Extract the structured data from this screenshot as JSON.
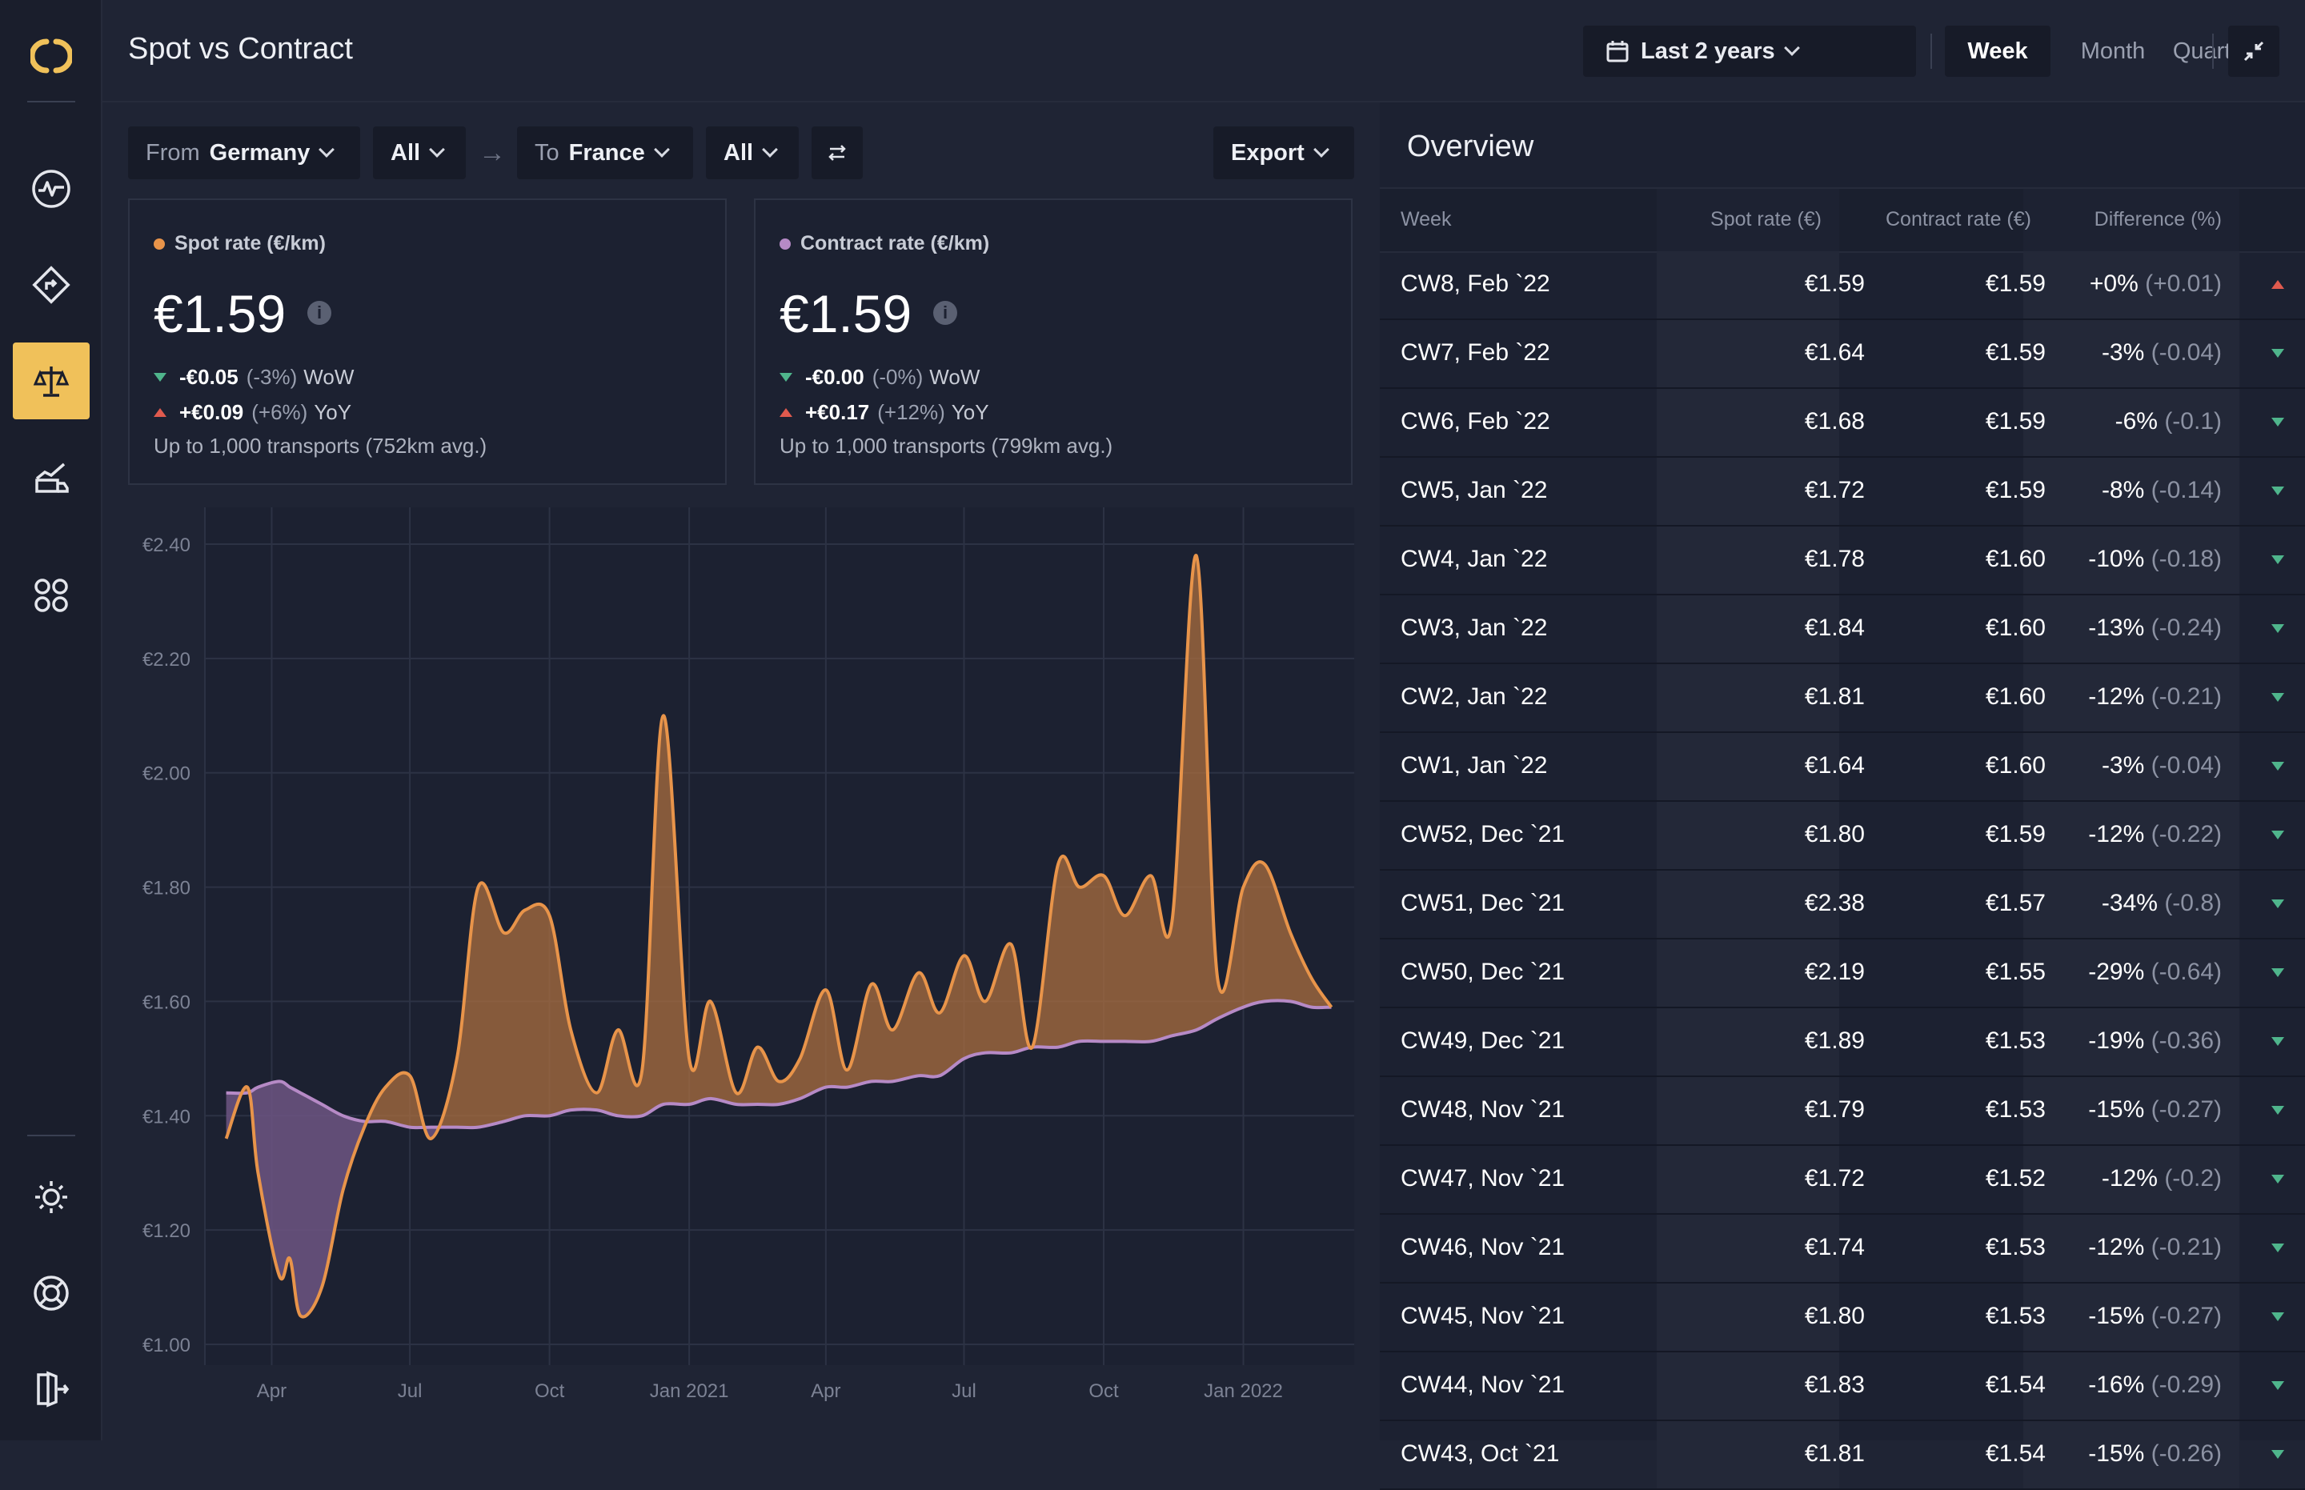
{
  "app": {
    "page_title": "Spot vs Contract",
    "logo_icon": "logo-brackets-icon",
    "accent_color": "#f0c15a"
  },
  "sidebar": {
    "items": [
      {
        "name": "activity-icon",
        "active": false
      },
      {
        "name": "routes-icon",
        "active": false
      },
      {
        "name": "scale-icon",
        "active": true
      },
      {
        "name": "truck-chart-icon",
        "active": false
      },
      {
        "name": "apps-grid-icon",
        "active": false
      }
    ],
    "bottom": [
      {
        "name": "theme-sun-icon"
      },
      {
        "name": "support-lifebuoy-icon"
      },
      {
        "name": "logout-icon"
      }
    ]
  },
  "header": {
    "date_range": "Last 2 years",
    "periods": [
      {
        "label": "Week",
        "active": true
      },
      {
        "label": "Month",
        "active": false
      },
      {
        "label": "Quarter",
        "active": false
      }
    ]
  },
  "filters": {
    "from_label": "From",
    "from_value": "Germany",
    "from_sub": "All",
    "to_label": "To",
    "to_value": "France",
    "to_sub": "All",
    "export_label": "Export"
  },
  "kpis": [
    {
      "title": "Spot rate (€/km)",
      "color": "#e8944a",
      "value": "€1.59",
      "wow_value": "-€0.05",
      "wow_pct": "(-3%)",
      "wow_label": "WoW",
      "wow_dir": "down",
      "yoy_value": "+€0.09",
      "yoy_pct": "(+6%)",
      "yoy_label": "YoY",
      "yoy_dir": "up",
      "footnote": "Up to 1,000 transports (752km avg.)"
    },
    {
      "title": "Contract rate (€/km)",
      "color": "#b68ac6",
      "value": "€1.59",
      "wow_value": "-€0.00",
      "wow_pct": "(-0%)",
      "wow_label": "WoW",
      "wow_dir": "down",
      "yoy_value": "+€0.17",
      "yoy_pct": "(+12%)",
      "yoy_label": "YoY",
      "yoy_dir": "up",
      "footnote": "Up to 1,000 transports (799km avg.)"
    }
  ],
  "chart_data": {
    "type": "area",
    "x": [
      "2020-03-02",
      "2020-03-16",
      "2020-03-23",
      "2020-04-06",
      "2020-04-13",
      "2020-04-20",
      "2020-05-04",
      "2020-05-18",
      "2020-06-01",
      "2020-06-15",
      "2020-07-01",
      "2020-07-15",
      "2020-08-01",
      "2020-08-15",
      "2020-09-01",
      "2020-09-15",
      "2020-10-01",
      "2020-10-15",
      "2020-11-01",
      "2020-11-15",
      "2020-12-01",
      "2020-12-15",
      "2021-01-01",
      "2021-01-15",
      "2021-02-01",
      "2021-02-15",
      "2021-03-01",
      "2021-03-15",
      "2021-04-01",
      "2021-04-15",
      "2021-05-01",
      "2021-05-15",
      "2021-06-01",
      "2021-06-15",
      "2021-07-01",
      "2021-07-15",
      "2021-08-01",
      "2021-08-15",
      "2021-09-01",
      "2021-09-15",
      "2021-10-01",
      "2021-10-15",
      "2021-11-01",
      "2021-11-15",
      "2021-12-01",
      "2021-12-15",
      "2022-01-01",
      "2022-01-15",
      "2022-02-01",
      "2022-02-15",
      "2022-02-28"
    ],
    "series": [
      {
        "name": "Spot rate (€/km)",
        "color": "#e8944a",
        "values": [
          1.36,
          1.45,
          1.3,
          1.12,
          1.15,
          1.05,
          1.1,
          1.27,
          1.38,
          1.45,
          1.47,
          1.36,
          1.5,
          1.8,
          1.72,
          1.76,
          1.75,
          1.55,
          1.44,
          1.55,
          1.48,
          2.1,
          1.5,
          1.6,
          1.44,
          1.52,
          1.46,
          1.5,
          1.62,
          1.48,
          1.63,
          1.55,
          1.65,
          1.58,
          1.68,
          1.6,
          1.7,
          1.52,
          1.84,
          1.8,
          1.82,
          1.75,
          1.82,
          1.74,
          2.38,
          1.64,
          1.8,
          1.84,
          1.72,
          1.64,
          1.59
        ]
      },
      {
        "name": "Contract rate (€/km)",
        "color": "#b68ac6",
        "values": [
          1.44,
          1.44,
          1.45,
          1.46,
          1.45,
          1.44,
          1.42,
          1.4,
          1.39,
          1.39,
          1.38,
          1.38,
          1.38,
          1.38,
          1.39,
          1.4,
          1.4,
          1.41,
          1.41,
          1.4,
          1.4,
          1.42,
          1.42,
          1.43,
          1.42,
          1.42,
          1.42,
          1.43,
          1.45,
          1.45,
          1.46,
          1.46,
          1.47,
          1.47,
          1.5,
          1.51,
          1.51,
          1.52,
          1.52,
          1.53,
          1.53,
          1.53,
          1.53,
          1.54,
          1.55,
          1.57,
          1.59,
          1.6,
          1.6,
          1.59,
          1.59
        ]
      }
    ],
    "y_ticks": [
      "€1.00",
      "€1.20",
      "€1.40",
      "€1.60",
      "€1.80",
      "€2.00",
      "€2.20",
      "€2.40"
    ],
    "x_ticks": [
      "Apr",
      "Jul",
      "Oct",
      "Jan 2021",
      "Apr",
      "Jul",
      "Oct",
      "Jan 2022"
    ],
    "ylim": [
      1.0,
      2.4
    ],
    "grid": true
  },
  "overview": {
    "title": "Overview",
    "columns": [
      "Week",
      "Spot rate (€)",
      "Contract rate (€)",
      "Difference (%)"
    ],
    "rows": [
      {
        "week": "CW8, Feb `22",
        "spot": "€1.59",
        "contract": "€1.59",
        "diff": "+0%",
        "diff_abs": "(+0.01)",
        "dir": "up"
      },
      {
        "week": "CW7, Feb `22",
        "spot": "€1.64",
        "contract": "€1.59",
        "diff": "-3%",
        "diff_abs": "(-0.04)",
        "dir": "down"
      },
      {
        "week": "CW6, Feb `22",
        "spot": "€1.68",
        "contract": "€1.59",
        "diff": "-6%",
        "diff_abs": "(-0.1)",
        "dir": "down"
      },
      {
        "week": "CW5, Jan `22",
        "spot": "€1.72",
        "contract": "€1.59",
        "diff": "-8%",
        "diff_abs": "(-0.14)",
        "dir": "down"
      },
      {
        "week": "CW4, Jan `22",
        "spot": "€1.78",
        "contract": "€1.60",
        "diff": "-10%",
        "diff_abs": "(-0.18)",
        "dir": "down"
      },
      {
        "week": "CW3, Jan `22",
        "spot": "€1.84",
        "contract": "€1.60",
        "diff": "-13%",
        "diff_abs": "(-0.24)",
        "dir": "down"
      },
      {
        "week": "CW2, Jan `22",
        "spot": "€1.81",
        "contract": "€1.60",
        "diff": "-12%",
        "diff_abs": "(-0.21)",
        "dir": "down"
      },
      {
        "week": "CW1, Jan `22",
        "spot": "€1.64",
        "contract": "€1.60",
        "diff": "-3%",
        "diff_abs": "(-0.04)",
        "dir": "down"
      },
      {
        "week": "CW52, Dec `21",
        "spot": "€1.80",
        "contract": "€1.59",
        "diff": "-12%",
        "diff_abs": "(-0.22)",
        "dir": "down"
      },
      {
        "week": "CW51, Dec `21",
        "spot": "€2.38",
        "contract": "€1.57",
        "diff": "-34%",
        "diff_abs": "(-0.8)",
        "dir": "down"
      },
      {
        "week": "CW50, Dec `21",
        "spot": "€2.19",
        "contract": "€1.55",
        "diff": "-29%",
        "diff_abs": "(-0.64)",
        "dir": "down"
      },
      {
        "week": "CW49, Dec `21",
        "spot": "€1.89",
        "contract": "€1.53",
        "diff": "-19%",
        "diff_abs": "(-0.36)",
        "dir": "down"
      },
      {
        "week": "CW48, Nov `21",
        "spot": "€1.79",
        "contract": "€1.53",
        "diff": "-15%",
        "diff_abs": "(-0.27)",
        "dir": "down"
      },
      {
        "week": "CW47, Nov `21",
        "spot": "€1.72",
        "contract": "€1.52",
        "diff": "-12%",
        "diff_abs": "(-0.2)",
        "dir": "down"
      },
      {
        "week": "CW46, Nov `21",
        "spot": "€1.74",
        "contract": "€1.53",
        "diff": "-12%",
        "diff_abs": "(-0.21)",
        "dir": "down"
      },
      {
        "week": "CW45, Nov `21",
        "spot": "€1.80",
        "contract": "€1.53",
        "diff": "-15%",
        "diff_abs": "(-0.27)",
        "dir": "down"
      },
      {
        "week": "CW44, Nov `21",
        "spot": "€1.83",
        "contract": "€1.54",
        "diff": "-16%",
        "diff_abs": "(-0.29)",
        "dir": "down"
      },
      {
        "week": "CW43, Oct `21",
        "spot": "€1.81",
        "contract": "€1.54",
        "diff": "-15%",
        "diff_abs": "(-0.26)",
        "dir": "down"
      }
    ]
  }
}
